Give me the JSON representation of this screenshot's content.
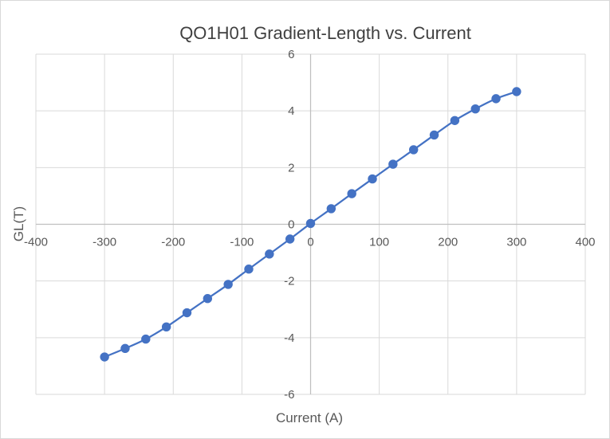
{
  "chart_data": {
    "type": "scatter",
    "title": "QO1H01 Gradient-Length vs. Current",
    "xlabel": "Current (A)",
    "ylabel": "GL(T)",
    "xlim": [
      -400,
      400
    ],
    "ylim": [
      -6,
      6
    ],
    "x_ticks": [
      -400,
      -300,
      -200,
      -100,
      0,
      100,
      200,
      300,
      400
    ],
    "y_ticks": [
      -6,
      -4,
      -2,
      0,
      2,
      4,
      6
    ],
    "x_tick_labels": [
      "-400",
      "-300",
      "-200",
      "-100",
      "0",
      "100",
      "200",
      "300",
      "400"
    ],
    "y_tick_labels": [
      "-6",
      "-4",
      "-2",
      "0",
      "2",
      "4",
      "6"
    ],
    "grid": true,
    "legend": "none",
    "markers": true,
    "line": "smooth",
    "color": "#4472C4",
    "series": [
      {
        "x": [
          -300,
          -270,
          -240,
          -210,
          -180,
          -150,
          -120,
          -90,
          -60,
          -30,
          0,
          30,
          60,
          90,
          120,
          150,
          180,
          210,
          240,
          270,
          300
        ],
        "y": [
          -4.68,
          -4.38,
          -4.05,
          -3.62,
          -3.12,
          -2.62,
          -2.12,
          -1.58,
          -1.05,
          -0.52,
          0.03,
          0.55,
          1.08,
          1.6,
          2.12,
          2.63,
          3.15,
          3.66,
          4.07,
          4.43,
          4.68
        ]
      }
    ]
  }
}
